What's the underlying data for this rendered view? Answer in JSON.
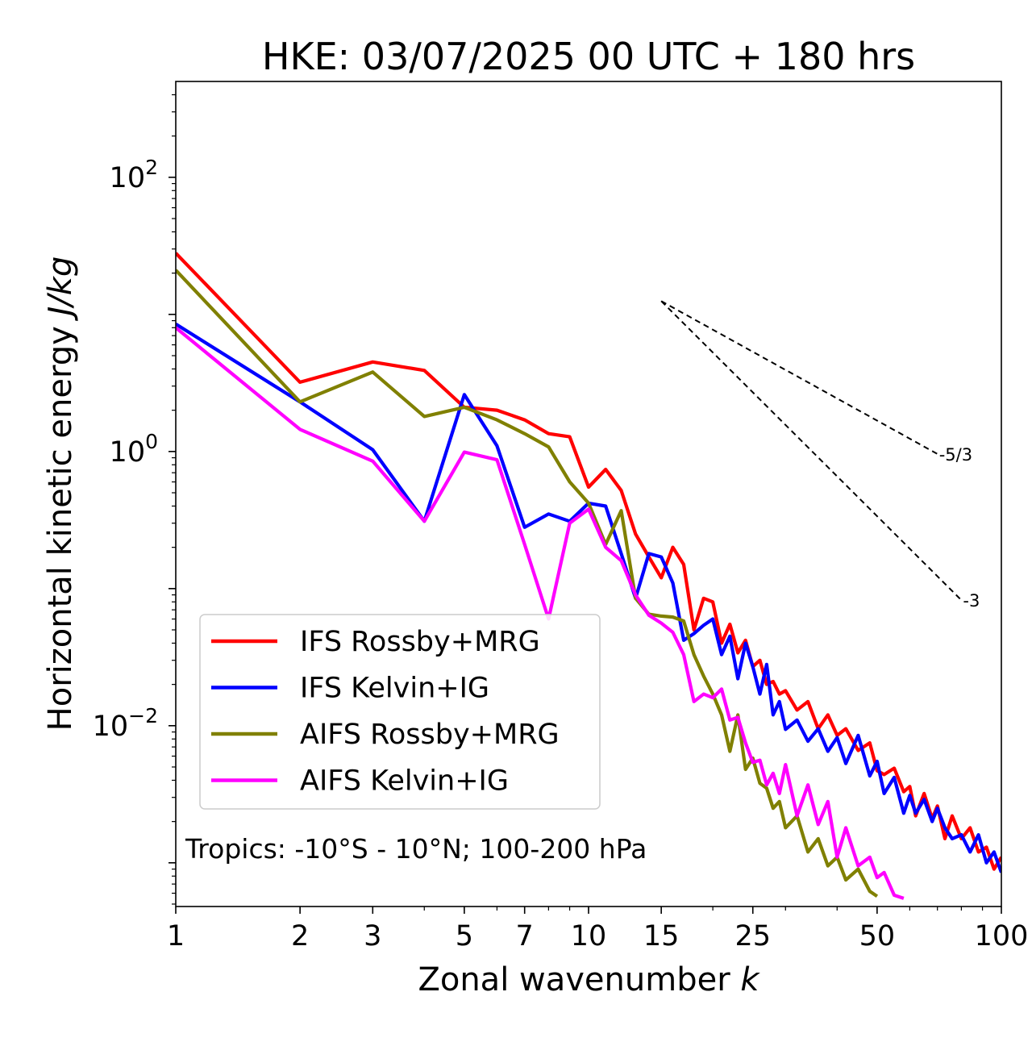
{
  "chart_data": {
    "type": "line",
    "title": "HKE: 03/07/2025 00 UTC + 180 hrs",
    "xlabel": "Zonal wavenumber k",
    "xlabel_main": "Zonal wavenumber ",
    "xlabel_var": "k",
    "ylabel": "Horizontal kinetic energy J/kg",
    "ylabel_main": "Horizontal kinetic energy ",
    "ylabel_unit": "J/kg",
    "xscale": "log",
    "yscale": "log",
    "xlim": [
      1,
      100
    ],
    "ylim": [
      0.00048,
      500
    ],
    "x_ticks": [
      1,
      2,
      3,
      5,
      7,
      10,
      15,
      25,
      50,
      100
    ],
    "x_tick_labels": [
      "1",
      "2",
      "3",
      "5",
      "7",
      "10",
      "15",
      "25",
      "50",
      "100"
    ],
    "y_ticks": [
      {
        "value": 100,
        "base": "10",
        "exp": "2"
      },
      {
        "value": 1,
        "base": "10",
        "exp": "0"
      },
      {
        "value": 0.01,
        "base": "10",
        "exp": "−2"
      }
    ],
    "annotation": "Tropics: -10°S - 10°N; 100-200 hPa",
    "legend_position": "lower-left",
    "reference_slopes": [
      {
        "label": "-5/3",
        "slope": -1.6667,
        "x_start": 15,
        "y_start": 12.5,
        "x_end": 70
      },
      {
        "label": "-3",
        "slope": -3,
        "x_start": 15,
        "y_start": 12.5,
        "x_end": 80
      }
    ],
    "series": [
      {
        "name": "IFS Rossby+MRG",
        "color": "#ff0000",
        "points": [
          [
            1,
            28
          ],
          [
            2,
            3.2
          ],
          [
            3,
            4.5
          ],
          [
            4,
            3.9
          ],
          [
            5,
            2.1
          ],
          [
            6,
            2.0
          ],
          [
            7,
            1.7
          ],
          [
            8,
            1.35
          ],
          [
            9,
            1.28
          ],
          [
            10,
            0.55
          ],
          [
            11,
            0.74
          ],
          [
            12,
            0.52
          ],
          [
            13,
            0.25
          ],
          [
            14,
            0.17
          ],
          [
            15,
            0.12
          ],
          [
            16,
            0.2
          ],
          [
            17,
            0.15
          ],
          [
            18,
            0.05
          ],
          [
            19,
            0.085
          ],
          [
            20,
            0.08
          ],
          [
            21,
            0.04
          ],
          [
            22,
            0.055
          ],
          [
            23,
            0.034
          ],
          [
            24,
            0.042
          ],
          [
            25,
            0.027
          ],
          [
            26,
            0.03
          ],
          [
            27,
            0.02
          ],
          [
            28,
            0.021
          ],
          [
            29,
            0.017
          ],
          [
            30,
            0.018
          ],
          [
            32,
            0.013
          ],
          [
            34,
            0.015
          ],
          [
            36,
            0.0095
          ],
          [
            38,
            0.012
          ],
          [
            40,
            0.0085
          ],
          [
            42,
            0.0095
          ],
          [
            45,
            0.0066
          ],
          [
            48,
            0.0075
          ],
          [
            50,
            0.0047
          ],
          [
            52,
            0.0044
          ],
          [
            55,
            0.0049
          ],
          [
            58,
            0.0033
          ],
          [
            60,
            0.0036
          ],
          [
            62,
            0.0022
          ],
          [
            65,
            0.0032
          ],
          [
            68,
            0.0021
          ],
          [
            70,
            0.0026
          ],
          [
            73,
            0.0015
          ],
          [
            76,
            0.0022
          ],
          [
            80,
            0.0015
          ],
          [
            84,
            0.0018
          ],
          [
            88,
            0.0012
          ],
          [
            92,
            0.0013
          ],
          [
            96,
            0.0009
          ],
          [
            100,
            0.0011
          ]
        ]
      },
      {
        "name": "IFS Kelvin+IG",
        "color": "#0000ff",
        "points": [
          [
            1,
            8.5
          ],
          [
            2,
            2.3
          ],
          [
            3,
            1.03
          ],
          [
            4,
            0.31
          ],
          [
            5,
            2.6
          ],
          [
            6,
            1.1
          ],
          [
            7,
            0.28
          ],
          [
            8,
            0.35
          ],
          [
            9,
            0.31
          ],
          [
            10,
            0.42
          ],
          [
            11,
            0.4
          ],
          [
            12,
            0.18
          ],
          [
            13,
            0.085
          ],
          [
            14,
            0.18
          ],
          [
            15,
            0.17
          ],
          [
            16,
            0.11
          ],
          [
            17,
            0.042
          ],
          [
            18,
            0.047
          ],
          [
            19,
            0.054
          ],
          [
            20,
            0.06
          ],
          [
            21,
            0.033
          ],
          [
            22,
            0.045
          ],
          [
            23,
            0.022
          ],
          [
            24,
            0.04
          ],
          [
            25,
            0.027
          ],
          [
            26,
            0.017
          ],
          [
            27,
            0.028
          ],
          [
            28,
            0.012
          ],
          [
            29,
            0.015
          ],
          [
            30,
            0.0094
          ],
          [
            32,
            0.011
          ],
          [
            34,
            0.0077
          ],
          [
            36,
            0.0095
          ],
          [
            38,
            0.0065
          ],
          [
            40,
            0.0082
          ],
          [
            42,
            0.0053
          ],
          [
            45,
            0.0085
          ],
          [
            48,
            0.0043
          ],
          [
            50,
            0.0055
          ],
          [
            52,
            0.0032
          ],
          [
            55,
            0.0042
          ],
          [
            58,
            0.0023
          ],
          [
            60,
            0.0031
          ],
          [
            62,
            0.0023
          ],
          [
            65,
            0.0029
          ],
          [
            68,
            0.002
          ],
          [
            70,
            0.0025
          ],
          [
            73,
            0.0018
          ],
          [
            76,
            0.0015
          ],
          [
            80,
            0.0016
          ],
          [
            84,
            0.0012
          ],
          [
            88,
            0.0016
          ],
          [
            92,
            0.001
          ],
          [
            96,
            0.0012
          ],
          [
            100,
            0.00085
          ]
        ]
      },
      {
        "name": "AIFS Rossby+MRG",
        "color": "#808000",
        "points": [
          [
            1,
            21
          ],
          [
            2,
            2.3
          ],
          [
            3,
            3.8
          ],
          [
            4,
            1.8
          ],
          [
            5,
            2.1
          ],
          [
            6,
            1.7
          ],
          [
            7,
            1.35
          ],
          [
            8,
            1.08
          ],
          [
            9,
            0.6
          ],
          [
            10,
            0.42
          ],
          [
            11,
            0.21
          ],
          [
            12,
            0.37
          ],
          [
            13,
            0.085
          ],
          [
            14,
            0.065
          ],
          [
            15,
            0.063
          ],
          [
            16,
            0.062
          ],
          [
            17,
            0.058
          ],
          [
            18,
            0.033
          ],
          [
            19,
            0.023
          ],
          [
            20,
            0.017
          ],
          [
            21,
            0.012
          ],
          [
            22,
            0.0065
          ],
          [
            23,
            0.012
          ],
          [
            24,
            0.0048
          ],
          [
            25,
            0.0058
          ],
          [
            26,
            0.0038
          ],
          [
            27,
            0.0035
          ],
          [
            28,
            0.0025
          ],
          [
            29,
            0.0028
          ],
          [
            30,
            0.0018
          ],
          [
            32,
            0.0022
          ],
          [
            34,
            0.0012
          ],
          [
            36,
            0.0015
          ],
          [
            38,
            0.00095
          ],
          [
            40,
            0.0011
          ],
          [
            42,
            0.00075
          ],
          [
            45,
            0.0009
          ],
          [
            48,
            0.00062
          ],
          [
            50,
            0.00057
          ]
        ]
      },
      {
        "name": "AIFS Kelvin+IG",
        "color": "#ff00ff",
        "points": [
          [
            1,
            8
          ],
          [
            2,
            1.45
          ],
          [
            3,
            0.85
          ],
          [
            4,
            0.31
          ],
          [
            5,
            0.99
          ],
          [
            6,
            0.87
          ],
          [
            7,
            0.21
          ],
          [
            8,
            0.06
          ],
          [
            9,
            0.3
          ],
          [
            10,
            0.38
          ],
          [
            11,
            0.2
          ],
          [
            12,
            0.16
          ],
          [
            13,
            0.09
          ],
          [
            14,
            0.064
          ],
          [
            15,
            0.056
          ],
          [
            16,
            0.048
          ],
          [
            17,
            0.033
          ],
          [
            18,
            0.015
          ],
          [
            19,
            0.017
          ],
          [
            20,
            0.016
          ],
          [
            21,
            0.0185
          ],
          [
            22,
            0.011
          ],
          [
            23,
            0.0115
          ],
          [
            24,
            0.0075
          ],
          [
            25,
            0.0054
          ],
          [
            26,
            0.0056
          ],
          [
            27,
            0.0037
          ],
          [
            28,
            0.0045
          ],
          [
            29,
            0.0032
          ],
          [
            30,
            0.0052
          ],
          [
            32,
            0.0022
          ],
          [
            34,
            0.0037
          ],
          [
            36,
            0.0019
          ],
          [
            38,
            0.0028
          ],
          [
            40,
            0.0011
          ],
          [
            42,
            0.0018
          ],
          [
            45,
            0.00095
          ],
          [
            48,
            0.0011
          ],
          [
            50,
            0.00078
          ],
          [
            52,
            0.00085
          ],
          [
            55,
            0.00058
          ],
          [
            58,
            0.00055
          ]
        ]
      }
    ]
  }
}
